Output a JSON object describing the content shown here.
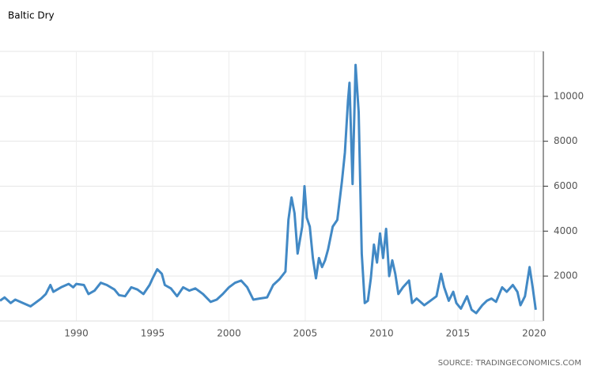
{
  "chart_data": {
    "type": "line",
    "title": "Baltic Dry",
    "source": "SOURCE: TRADINGECONOMICS.COM",
    "color": "#4289c5",
    "grid": true,
    "xlim": [
      1985,
      2020.6
    ],
    "xticks": [
      1990,
      1995,
      2000,
      2005,
      2010,
      2015,
      2020
    ],
    "ylim": [
      0,
      12000
    ],
    "yticks": [
      2000,
      4000,
      6000,
      8000,
      10000
    ],
    "x": [
      1985.0,
      1985.3,
      1985.7,
      1986.0,
      1986.5,
      1987.0,
      1987.3,
      1987.7,
      1988.0,
      1988.3,
      1988.5,
      1989.0,
      1989.5,
      1989.8,
      1990.0,
      1990.5,
      1990.8,
      1991.2,
      1991.6,
      1992.0,
      1992.5,
      1992.8,
      1993.2,
      1993.6,
      1994.0,
      1994.4,
      1994.8,
      1995.0,
      1995.3,
      1995.6,
      1995.8,
      1996.2,
      1996.6,
      1997.0,
      1997.4,
      1997.8,
      1998.3,
      1998.8,
      1999.2,
      1999.6,
      2000.0,
      2000.4,
      2000.8,
      2001.2,
      2001.6,
      2002.0,
      2002.5,
      2002.9,
      2003.3,
      2003.7,
      2003.9,
      2004.1,
      2004.3,
      2004.5,
      2004.8,
      2004.95,
      2005.1,
      2005.3,
      2005.5,
      2005.7,
      2005.9,
      2006.1,
      2006.3,
      2006.5,
      2006.8,
      2007.1,
      2007.4,
      2007.6,
      2007.8,
      2007.9,
      2008.1,
      2008.3,
      2008.5,
      2008.7,
      2008.9,
      2009.1,
      2009.3,
      2009.5,
      2009.7,
      2009.9,
      2010.1,
      2010.3,
      2010.5,
      2010.7,
      2010.9,
      2011.1,
      2011.4,
      2011.8,
      2012.0,
      2012.3,
      2012.8,
      2013.2,
      2013.6,
      2013.9,
      2014.1,
      2014.4,
      2014.7,
      2014.9,
      2015.2,
      2015.6,
      2015.9,
      2016.2,
      2016.6,
      2016.9,
      2017.2,
      2017.5,
      2017.9,
      2018.2,
      2018.6,
      2018.9,
      2019.1,
      2019.4,
      2019.7,
      2019.9,
      2020.1
    ],
    "values": [
      900,
      1050,
      800,
      950,
      800,
      650,
      800,
      1000,
      1200,
      1600,
      1300,
      1500,
      1650,
      1500,
      1650,
      1600,
      1200,
      1350,
      1700,
      1600,
      1400,
      1150,
      1100,
      1500,
      1400,
      1200,
      1600,
      1900,
      2300,
      2100,
      1600,
      1450,
      1100,
      1500,
      1350,
      1450,
      1200,
      850,
      950,
      1200,
      1500,
      1700,
      1800,
      1500,
      950,
      1000,
      1050,
      1600,
      1850,
      2200,
      4500,
      5500,
      4800,
      3000,
      4200,
      6000,
      4600,
      4200,
      2800,
      1900,
      2800,
      2400,
      2700,
      3200,
      4200,
      4500,
      6200,
      7500,
      9800,
      10600,
      6100,
      11400,
      9300,
      3000,
      800,
      900,
      1900,
      3400,
      2600,
      3900,
      2800,
      4100,
      2000,
      2700,
      2100,
      1200,
      1500,
      1800,
      800,
      1000,
      700,
      900,
      1100,
      2100,
      1500,
      900,
      1300,
      800,
      550,
      1100,
      500,
      350,
      700,
      900,
      1000,
      850,
      1500,
      1300,
      1600,
      1300,
      700,
      1100,
      2400,
      1500,
      500
    ]
  }
}
